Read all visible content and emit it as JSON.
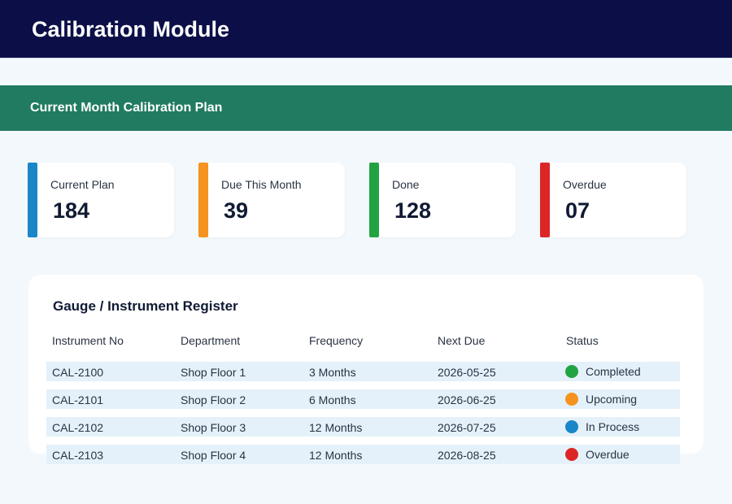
{
  "app": {
    "title": "Calibration Module"
  },
  "section": {
    "title": "Current Month Calibration Plan"
  },
  "kpis": [
    {
      "label": "Current Plan",
      "value": "184",
      "color": "#1a86c8"
    },
    {
      "label": "Due This Month",
      "value": "39",
      "color": "#f6921e"
    },
    {
      "label": "Done",
      "value": "128",
      "color": "#22a342"
    },
    {
      "label": "Overdue",
      "value": "07",
      "color": "#dc2626"
    }
  ],
  "register": {
    "title": "Gauge / Instrument Register",
    "columns": [
      "Instrument No",
      "Department",
      "Frequency",
      "Next Due",
      "Status"
    ],
    "rows": [
      {
        "instrument": "CAL-2100",
        "department": "Shop Floor 1",
        "frequency": "3 Months",
        "next_due": "2026-05-25",
        "status": "Completed",
        "status_color": "#22a342"
      },
      {
        "instrument": "CAL-2101",
        "department": "Shop Floor 2",
        "frequency": "6 Months",
        "next_due": "2026-06-25",
        "status": "Upcoming",
        "status_color": "#f6921e"
      },
      {
        "instrument": "CAL-2102",
        "department": "Shop Floor 3",
        "frequency": "12 Months",
        "next_due": "2026-07-25",
        "status": "In Process",
        "status_color": "#1a86c8"
      },
      {
        "instrument": "CAL-2103",
        "department": "Shop Floor 4",
        "frequency": "12 Months",
        "next_due": "2026-08-25",
        "status": "Overdue",
        "status_color": "#dc2626"
      }
    ]
  },
  "colors": {
    "header_bg": "#0c0f47",
    "section_bg": "#217b60",
    "page_bg": "#f3f8fc",
    "row_bg": "#e4f1fa"
  }
}
